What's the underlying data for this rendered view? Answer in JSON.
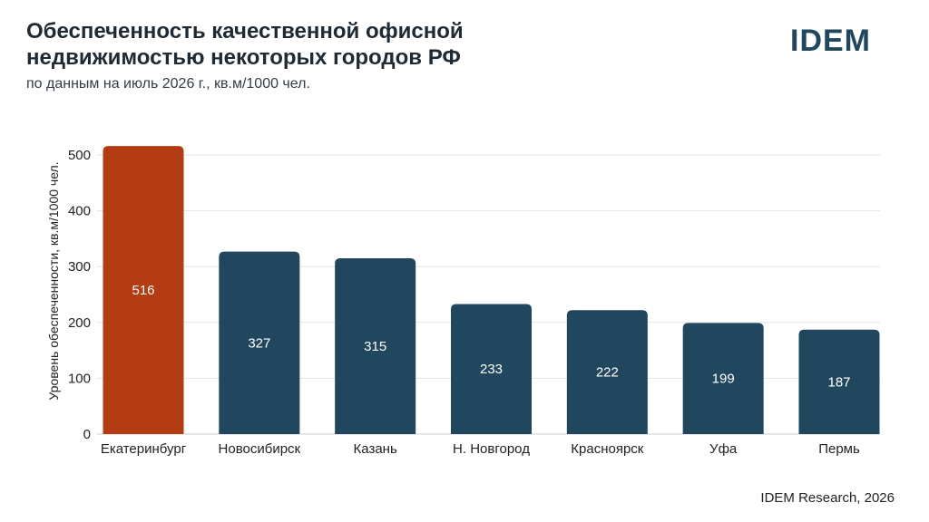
{
  "header": {
    "title": "Обеспеченность качественной офисной недвижимостью некоторых городов РФ",
    "subtitle": "по данным на июль 2026 г., кв.м/1000 чел.",
    "logo_text": "IDEM"
  },
  "footer": {
    "source": "IDEM Research, 2026"
  },
  "colors": {
    "highlight": "#b33c12",
    "bar": "#21475f",
    "grid": "#e3e3e3"
  },
  "chart_data": {
    "type": "bar",
    "categories": [
      "Екатеринбург",
      "Новосибирск",
      "Казань",
      "Н. Новгород",
      "Красноярск",
      "Уфа",
      "Пермь"
    ],
    "values": [
      516,
      327,
      315,
      233,
      222,
      199,
      187
    ],
    "highlight_index": 0,
    "ylabel": "Уровень обеспеченности, кв.м/1000 чел.",
    "xlabel": "",
    "ylim": [
      0,
      500
    ],
    "yticks": [
      0,
      100,
      200,
      300,
      400,
      500
    ],
    "grid": true,
    "data_labels": true
  }
}
